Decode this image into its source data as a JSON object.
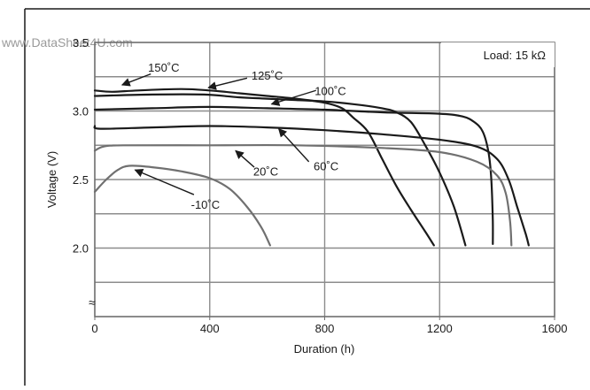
{
  "watermark": "www.DataSheet4U.com",
  "chart_data": {
    "type": "line",
    "xlabel": "Duration (h)",
    "ylabel": "Voltage (V)",
    "xlim": [
      0,
      1600
    ],
    "ylim": [
      1.5,
      3.5
    ],
    "x_ticks": [
      0,
      400,
      800,
      1200,
      1600
    ],
    "x_tick_labels": [
      "0",
      "400",
      "800",
      "1200",
      "1600"
    ],
    "y_ticks": [
      2.0,
      2.5,
      3.0,
      3.5
    ],
    "y_tick_labels": [
      "2.0",
      "2.5",
      "3.0",
      "3.5"
    ],
    "axis_break_symbol": "≈",
    "grid": true,
    "legend": "none (curves labeled directly)",
    "load_label": "Load: 15 kΩ",
    "series": [
      {
        "name": "150˚C",
        "color": "#1a1a1a",
        "points": [
          [
            0,
            3.15
          ],
          [
            60,
            3.14
          ],
          [
            150,
            3.15
          ],
          [
            300,
            3.16
          ],
          [
            400,
            3.15
          ],
          [
            500,
            3.13
          ],
          [
            600,
            3.11
          ],
          [
            700,
            3.09
          ],
          [
            800,
            3.06
          ],
          [
            860,
            3.02
          ],
          [
            900,
            2.95
          ],
          [
            950,
            2.85
          ],
          [
            1000,
            2.65
          ],
          [
            1050,
            2.45
          ],
          [
            1100,
            2.28
          ],
          [
            1150,
            2.12
          ],
          [
            1180,
            2.02
          ]
        ]
      },
      {
        "name": "125˚C",
        "color": "#1a1a1a",
        "points": [
          [
            0,
            3.11
          ],
          [
            200,
            3.12
          ],
          [
            380,
            3.12
          ],
          [
            500,
            3.1
          ],
          [
            600,
            3.09
          ],
          [
            700,
            3.08
          ],
          [
            800,
            3.07
          ],
          [
            900,
            3.05
          ],
          [
            1000,
            3.02
          ],
          [
            1050,
            2.99
          ],
          [
            1100,
            2.92
          ],
          [
            1150,
            2.75
          ],
          [
            1200,
            2.55
          ],
          [
            1250,
            2.3
          ],
          [
            1290,
            2.02
          ]
        ]
      },
      {
        "name": "100˚C",
        "color": "#1a1a1a",
        "points": [
          [
            0,
            3.01
          ],
          [
            200,
            3.02
          ],
          [
            400,
            3.03
          ],
          [
            600,
            3.02
          ],
          [
            800,
            3.01
          ],
          [
            1000,
            2.99
          ],
          [
            1200,
            2.98
          ],
          [
            1280,
            2.96
          ],
          [
            1320,
            2.92
          ],
          [
            1350,
            2.85
          ],
          [
            1370,
            2.7
          ],
          [
            1380,
            2.5
          ],
          [
            1385,
            2.2
          ],
          [
            1385,
            2.03
          ]
        ]
      },
      {
        "name": "60˚C",
        "color": "#1a1a1a",
        "points": [
          [
            0,
            2.89
          ],
          [
            20,
            2.87
          ],
          [
            200,
            2.88
          ],
          [
            400,
            2.89
          ],
          [
            600,
            2.88
          ],
          [
            800,
            2.86
          ],
          [
            1000,
            2.83
          ],
          [
            1200,
            2.79
          ],
          [
            1330,
            2.74
          ],
          [
            1400,
            2.65
          ],
          [
            1440,
            2.5
          ],
          [
            1470,
            2.3
          ],
          [
            1500,
            2.1
          ],
          [
            1510,
            2.02
          ]
        ]
      },
      {
        "name": "20˚C",
        "color": "#707070",
        "points": [
          [
            0,
            2.71
          ],
          [
            30,
            2.74
          ],
          [
            100,
            2.75
          ],
          [
            400,
            2.75
          ],
          [
            700,
            2.75
          ],
          [
            1000,
            2.73
          ],
          [
            1200,
            2.7
          ],
          [
            1330,
            2.63
          ],
          [
            1400,
            2.53
          ],
          [
            1430,
            2.4
          ],
          [
            1445,
            2.2
          ],
          [
            1450,
            2.02
          ]
        ]
      },
      {
        "name": "-10˚C",
        "color": "#707070",
        "points": [
          [
            0,
            2.41
          ],
          [
            40,
            2.5
          ],
          [
            80,
            2.57
          ],
          [
            120,
            2.6
          ],
          [
            200,
            2.59
          ],
          [
            300,
            2.56
          ],
          [
            400,
            2.51
          ],
          [
            470,
            2.43
          ],
          [
            530,
            2.3
          ],
          [
            580,
            2.15
          ],
          [
            610,
            2.02
          ]
        ]
      }
    ],
    "annotations": [
      {
        "text": "150˚C",
        "tx": 240,
        "ty": 3.32,
        "ax": 195,
        "ay": 3.27,
        "hx": 95,
        "hy": 3.19
      },
      {
        "text": "125˚C",
        "tx": 600,
        "ty": 3.26,
        "ax": 530,
        "ay": 3.24,
        "hx": 395,
        "hy": 3.17
      },
      {
        "text": "100˚C",
        "tx": 820,
        "ty": 3.15,
        "ax": 770,
        "ay": 3.15,
        "hx": 615,
        "hy": 3.05
      },
      {
        "text": "60˚C",
        "tx": 805,
        "ty": 2.6,
        "ax": 745,
        "ay": 2.63,
        "hx": 640,
        "hy": 2.87
      },
      {
        "text": "20˚C",
        "tx": 595,
        "ty": 2.56,
        "ax": 555,
        "ay": 2.59,
        "hx": 490,
        "hy": 2.71
      },
      {
        "text": "-10˚C",
        "tx": 385,
        "ty": 2.32,
        "ax": 345,
        "ay": 2.39,
        "hx": 140,
        "hy": 2.57
      }
    ]
  }
}
